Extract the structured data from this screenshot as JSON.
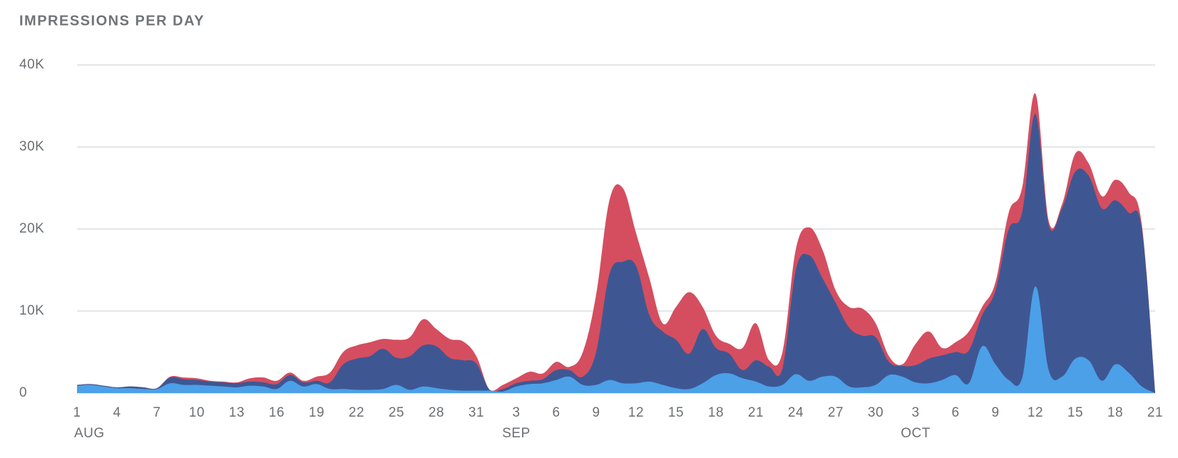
{
  "chart_data": {
    "type": "stacked_area",
    "title": "IMPRESSIONS PER DAY",
    "categories": [
      "1",
      null,
      null,
      "4",
      null,
      null,
      "7",
      null,
      null,
      "10",
      null,
      null,
      "13",
      null,
      null,
      "16",
      null,
      null,
      "19",
      null,
      null,
      "22",
      null,
      null,
      "25",
      null,
      null,
      "28",
      null,
      null,
      "31",
      null,
      null,
      "3",
      null,
      null,
      "6",
      null,
      null,
      "9",
      null,
      null,
      "12",
      null,
      null,
      "15",
      null,
      null,
      "18",
      null,
      null,
      "21",
      null,
      null,
      "24",
      null,
      null,
      "27",
      null,
      null,
      "30",
      null,
      null,
      "3",
      null,
      null,
      "6",
      null,
      null,
      "9",
      null,
      null,
      "12",
      null,
      null,
      "15",
      null,
      null,
      "18",
      null,
      null,
      "21"
    ],
    "months": [
      "AUG",
      "SEP",
      "OCT"
    ],
    "series": [
      {
        "color": "#4ba0e8",
        "values": [
          900,
          1000,
          800,
          600,
          600,
          500,
          500,
          1200,
          1000,
          1000,
          900,
          800,
          700,
          900,
          800,
          500,
          1500,
          800,
          1100,
          500,
          500,
          400,
          400,
          500,
          1000,
          400,
          800,
          600,
          400,
          300,
          300,
          300,
          200,
          800,
          1100,
          1200,
          1600,
          2000,
          1000,
          1000,
          1600,
          1200,
          1200,
          1400,
          1000,
          600,
          500,
          1200,
          2200,
          2400,
          1800,
          1400,
          800,
          1000,
          2300,
          1500,
          2000,
          2000,
          800,
          700,
          1000,
          2200,
          2000,
          1300,
          1200,
          1600,
          2200,
          1200,
          5700,
          3500,
          1600,
          1800,
          13000,
          2800,
          2000,
          4200,
          4000,
          1500,
          3500,
          2500,
          800,
          0
        ]
      },
      {
        "color": "#3e5793",
        "values": [
          100,
          100,
          100,
          100,
          200,
          200,
          100,
          700,
          700,
          600,
          500,
          500,
          500,
          500,
          500,
          600,
          700,
          500,
          400,
          800,
          3000,
          3800,
          4100,
          4900,
          3300,
          4100,
          5000,
          5100,
          3900,
          3700,
          3300,
          100,
          300,
          400,
          400,
          500,
          1200,
          800,
          1000,
          4000,
          12900,
          14800,
          14300,
          8100,
          6500,
          5900,
          4300,
          6600,
          3300,
          2400,
          1000,
          2600,
          2400,
          2000,
          12700,
          15300,
          12000,
          9000,
          7200,
          6300,
          5800,
          1600,
          1300,
          2100,
          3000,
          3000,
          2800,
          4000,
          3800,
          9000,
          18400,
          20200,
          21000,
          17700,
          20500,
          22800,
          22500,
          21000,
          20000,
          19500,
          19200,
          0
        ]
      },
      {
        "color": "#d44e60",
        "values": [
          0,
          0,
          0,
          0,
          0,
          0,
          0,
          100,
          200,
          200,
          100,
          100,
          100,
          400,
          600,
          400,
          300,
          200,
          500,
          1200,
          1500,
          1600,
          1700,
          1200,
          2200,
          2300,
          3200,
          2100,
          2300,
          2300,
          900,
          0,
          500,
          600,
          1100,
          700,
          1000,
          400,
          3000,
          7000,
          9000,
          9000,
          4000,
          4500,
          1000,
          4000,
          7500,
          2700,
          1500,
          1200,
          2700,
          4500,
          800,
          2000,
          2500,
          3400,
          3500,
          1500,
          2500,
          3300,
          1700,
          700,
          200,
          2600,
          3300,
          900,
          1200,
          2300,
          1000,
          1000,
          2000,
          3000,
          2500,
          500,
          500,
          2200,
          1500,
          1500,
          2500,
          2500,
          500,
          0
        ]
      }
    ],
    "ylim": [
      0,
      40000
    ],
    "yticks": [
      {
        "value": 0,
        "label": "0"
      },
      {
        "value": 10000,
        "label": "10K"
      },
      {
        "value": 20000,
        "label": "20K"
      },
      {
        "value": 30000,
        "label": "30K"
      },
      {
        "value": 40000,
        "label": "40K"
      }
    ],
    "grid": true
  }
}
